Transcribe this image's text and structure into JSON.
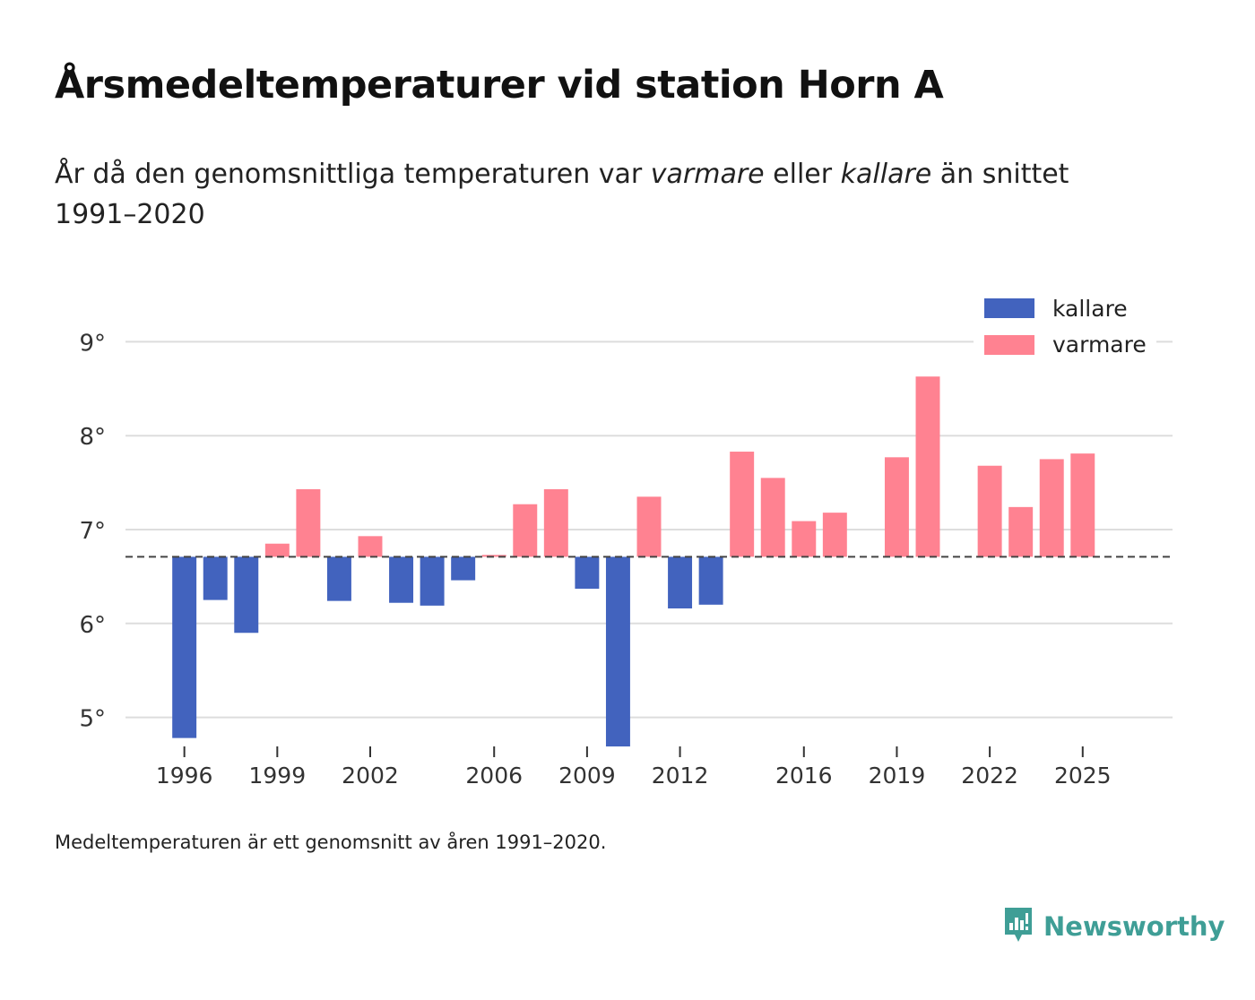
{
  "title": "Årsmedeltemperaturer vid station Horn A",
  "subtitle": {
    "before": "År då den genomsnittliga temperaturen var ",
    "warmer": "varmare",
    "middle": " eller ",
    "colder": "kallare",
    "after": " än snittet 1991–2020"
  },
  "footnote": "Medeltemperaturen är ett genomsnitt av åren 1991–2020.",
  "brand": {
    "name": "Newsworthy",
    "icon": "newsworthy-logo-icon",
    "color": "#3f9e96"
  },
  "colors": {
    "colder": "#4263be",
    "warmer": "#ff8291",
    "grid": "#dddddd",
    "baseline": "#444444"
  },
  "chart_data": {
    "type": "bar",
    "baseline": 6.71,
    "ylim": [
      4.7,
      9.3
    ],
    "yticks": [
      {
        "value": 5,
        "label": "5°"
      },
      {
        "value": 6,
        "label": "6°"
      },
      {
        "value": 7,
        "label": "7°"
      },
      {
        "value": 8,
        "label": "8°"
      },
      {
        "value": 9,
        "label": "9°"
      }
    ],
    "xlim": [
      1994.1,
      2027.9
    ],
    "xticks": [
      1996,
      1999,
      2002,
      2006,
      2009,
      2012,
      2016,
      2019,
      2022,
      2025
    ],
    "legend": {
      "position": "top-right",
      "colder_label": "kallare",
      "warmer_label": "varmare"
    },
    "bars": [
      {
        "year": 1996,
        "value": 4.78
      },
      {
        "year": 1997,
        "value": 6.25
      },
      {
        "year": 1998,
        "value": 5.9
      },
      {
        "year": 1999,
        "value": 6.85
      },
      {
        "year": 2000,
        "value": 7.43
      },
      {
        "year": 2001,
        "value": 6.24
      },
      {
        "year": 2002,
        "value": 6.93
      },
      {
        "year": 2003,
        "value": 6.22
      },
      {
        "year": 2004,
        "value": 6.19
      },
      {
        "year": 2005,
        "value": 6.46
      },
      {
        "year": 2006,
        "value": 6.73
      },
      {
        "year": 2007,
        "value": 7.27
      },
      {
        "year": 2008,
        "value": 7.43
      },
      {
        "year": 2009,
        "value": 6.37
      },
      {
        "year": 2010,
        "value": 4.69
      },
      {
        "year": 2011,
        "value": 7.35
      },
      {
        "year": 2012,
        "value": 6.16
      },
      {
        "year": 2013,
        "value": 6.2
      },
      {
        "year": 2014,
        "value": 7.83
      },
      {
        "year": 2015,
        "value": 7.55
      },
      {
        "year": 2016,
        "value": 7.09
      },
      {
        "year": 2017,
        "value": 7.18
      },
      {
        "year": 2019,
        "value": 7.77
      },
      {
        "year": 2020,
        "value": 8.63
      },
      {
        "year": 2022,
        "value": 7.68
      },
      {
        "year": 2023,
        "value": 7.24
      },
      {
        "year": 2024,
        "value": 7.75
      },
      {
        "year": 2025,
        "value": 7.81
      }
    ]
  }
}
